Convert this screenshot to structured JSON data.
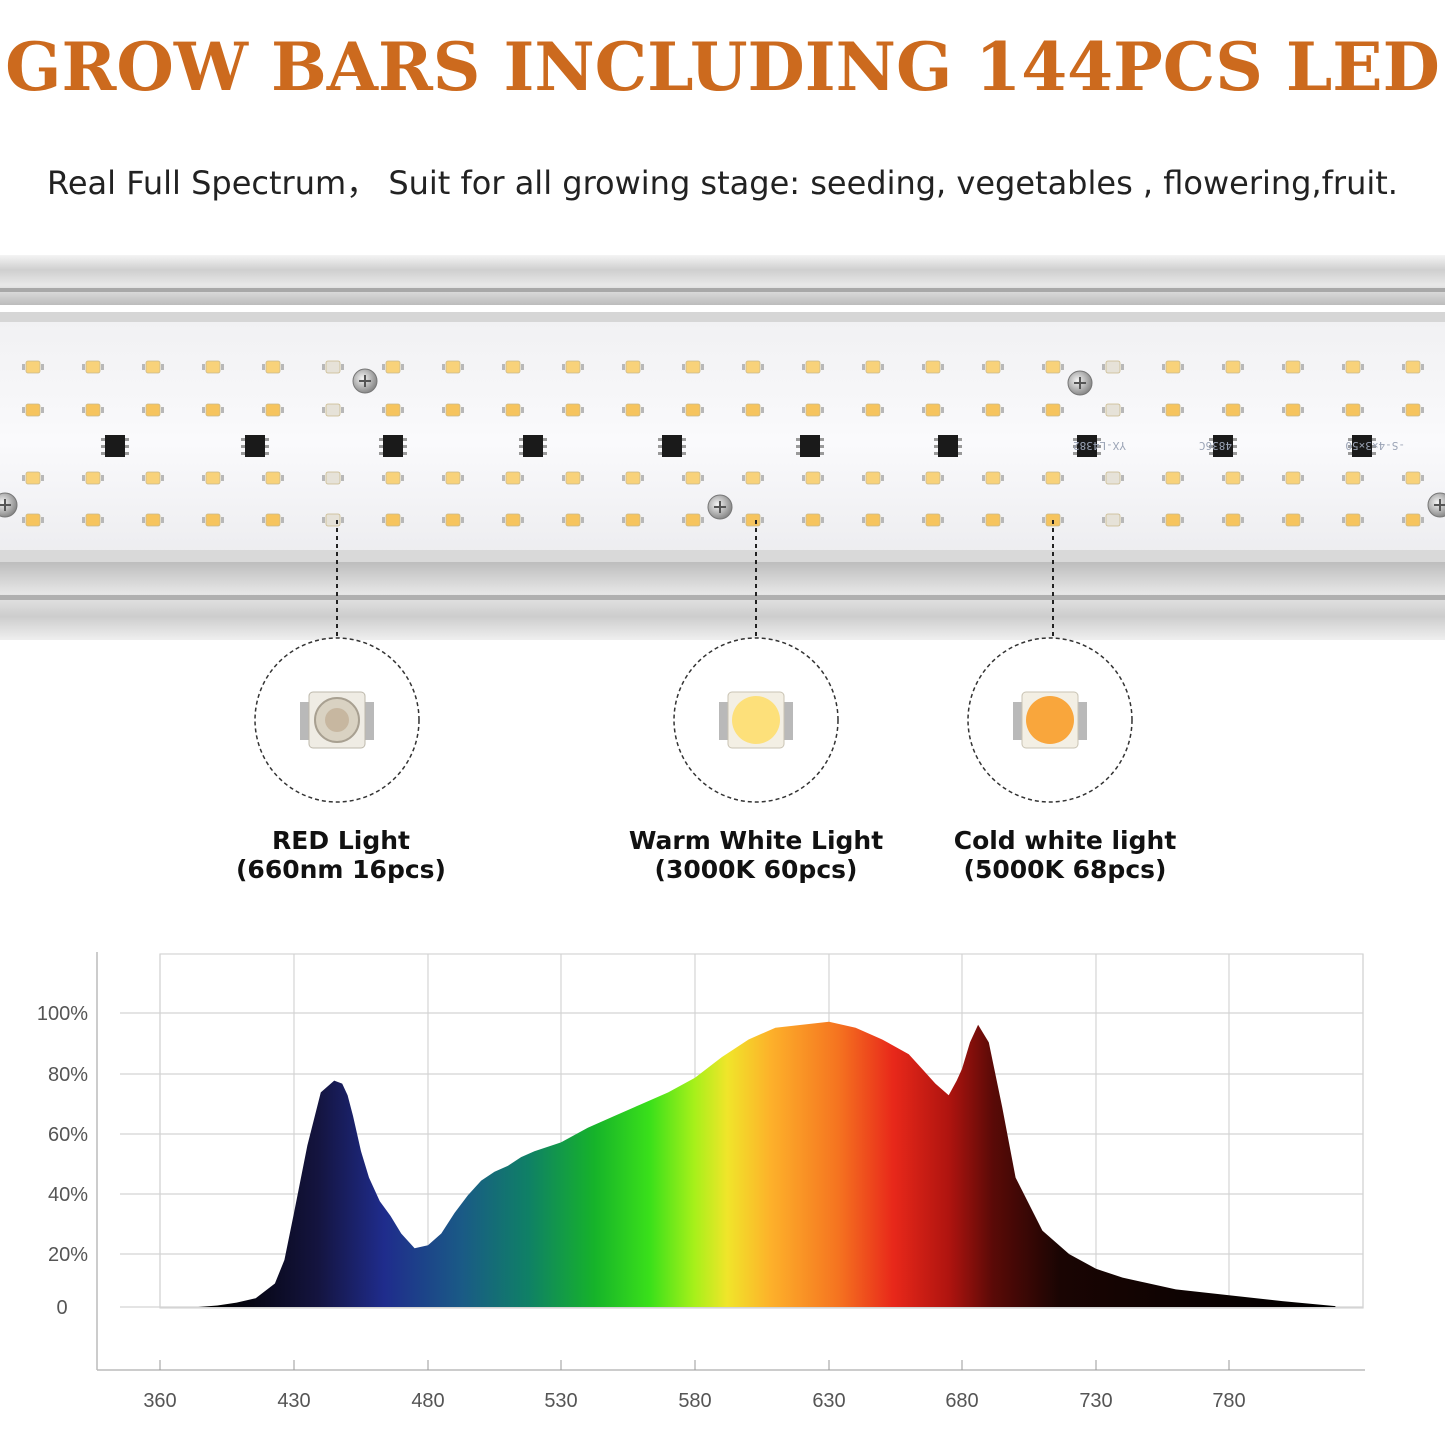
{
  "header": {
    "title": "GROW BARS INCLUDING 144PCS LED",
    "subtitle": "Real Full Spectrum， Suit for all growing stage: seeding, vegetables , flowering,fruit."
  },
  "board_markings": [
    "YX-L4382",
    "4836C",
    "-S-4×3×50"
  ],
  "leds": [
    {
      "name": "RED Light",
      "spec": "(660nm 16pcs)",
      "color": "#e9e4d8"
    },
    {
      "name": "Warm White Light",
      "spec": "(3000K 60pcs)",
      "color": "#fde07a"
    },
    {
      "name": "Cold white light",
      "spec": "(5000K 68pcs)",
      "color": "#f9a63c"
    }
  ],
  "chart_data": {
    "type": "area",
    "title": "",
    "xlabel": "",
    "ylabel": "",
    "x_ticks": [
      360,
      430,
      480,
      530,
      580,
      630,
      680,
      730,
      780
    ],
    "y_ticks": [
      "0",
      "20%",
      "40%",
      "60%",
      "80%",
      "100%"
    ],
    "y_tick_values": [
      0,
      20,
      40,
      60,
      80,
      100
    ],
    "grid": true,
    "series": [
      {
        "x": [
          380,
          390,
          400,
          410,
          420,
          425,
          430,
          435,
          440,
          445,
          448,
          450,
          452,
          455,
          458,
          462,
          466,
          470,
          475,
          480,
          485,
          490,
          495,
          500,
          505,
          510,
          515,
          520,
          530,
          540,
          550,
          560,
          570,
          580,
          590,
          600,
          610,
          620,
          630,
          640,
          650,
          660,
          665,
          670,
          675,
          678,
          680,
          683,
          686,
          690,
          695,
          700,
          710,
          720,
          730,
          740,
          750,
          760,
          780,
          800,
          820
        ],
        "y": [
          0,
          0.5,
          1.5,
          3,
          8,
          16,
          32,
          55,
          73,
          77,
          76,
          72,
          65,
          53,
          44,
          36,
          31,
          25,
          20,
          21,
          25,
          32,
          38,
          43,
          46,
          48,
          51,
          53,
          56,
          61,
          65,
          69,
          73,
          78,
          85,
          91,
          95,
          96,
          97,
          95,
          91,
          86,
          81,
          76,
          72,
          77,
          81,
          90,
          96,
          90,
          68,
          44,
          26,
          18,
          13,
          10,
          8,
          6,
          4,
          2,
          0.3
        ]
      }
    ]
  }
}
